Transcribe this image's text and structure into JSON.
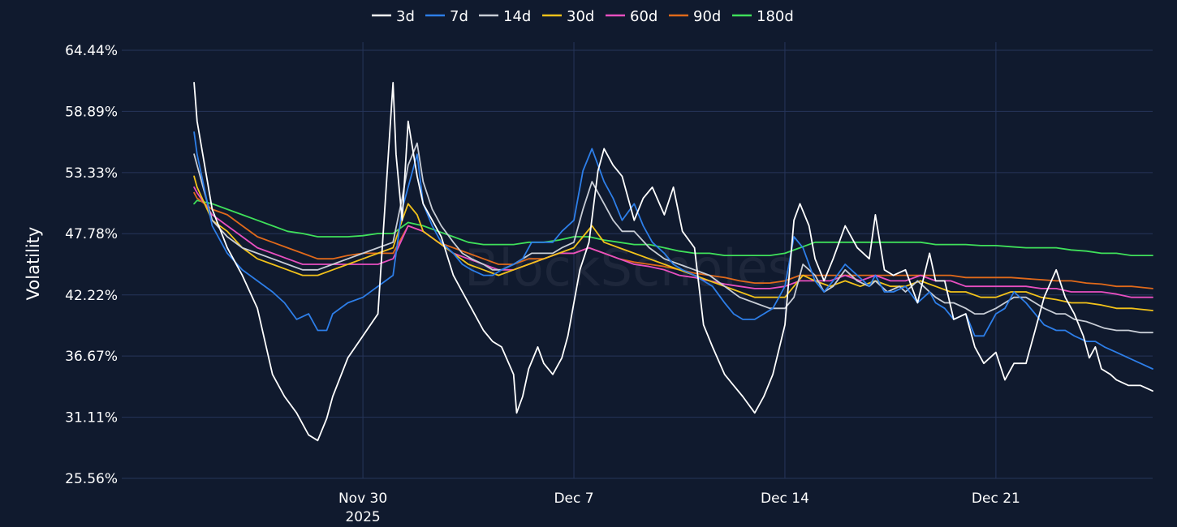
{
  "watermark": "BlockScholes",
  "chart_data": {
    "type": "line",
    "title": "",
    "xlabel": "",
    "ylabel": "Volatility",
    "ylim": [
      25.56,
      64.44
    ],
    "xlim_days_from_nov30": [
      -8,
      26.2
    ],
    "yticks": [
      "25.56%",
      "31.11%",
      "36.67%",
      "42.22%",
      "47.78%",
      "53.33%",
      "58.89%",
      "64.44%"
    ],
    "ytick_values": [
      25.56,
      31.11,
      36.67,
      42.22,
      47.78,
      53.33,
      58.89,
      64.44
    ],
    "xticks": [
      {
        "label": "Nov 30",
        "sublabel": "2025",
        "day": 0
      },
      {
        "label": "Dec 7",
        "sublabel": "",
        "day": 7
      },
      {
        "label": "Dec 14",
        "sublabel": "",
        "day": 14
      },
      {
        "label": "Dec 21",
        "sublabel": "",
        "day": 21
      }
    ],
    "legend_position": "top-center",
    "series": [
      {
        "name": "3d",
        "color": "#ffffff",
        "x": [
          -5.6,
          -5.5,
          -5.0,
          -4.5,
          -4.0,
          -3.5,
          -3.0,
          -2.6,
          -2.2,
          -1.8,
          -1.5,
          -1.2,
          -1.0,
          -0.5,
          0.0,
          0.5,
          1.0,
          1.1,
          1.3,
          1.5,
          1.8,
          2.0,
          2.3,
          2.6,
          3.0,
          3.3,
          3.6,
          4.0,
          4.3,
          4.6,
          5.0,
          5.1,
          5.3,
          5.5,
          5.8,
          6.0,
          6.3,
          6.6,
          6.8,
          7.0,
          7.2,
          7.5,
          7.8,
          8.0,
          8.3,
          8.6,
          9.0,
          9.3,
          9.6,
          10.0,
          10.3,
          10.6,
          11.0,
          11.3,
          11.6,
          12.0,
          12.3,
          12.6,
          13.0,
          13.3,
          13.6,
          14.0,
          14.3,
          14.5,
          14.8,
          15.0,
          15.3,
          15.6,
          16.0,
          16.4,
          16.8,
          17.0,
          17.3,
          17.6,
          18.0,
          18.4,
          18.8,
          19.0,
          19.3,
          19.6,
          20.0,
          20.3,
          20.6,
          21.0,
          21.3,
          21.6,
          22.0,
          22.3,
          22.6,
          23.0,
          23.3,
          23.6,
          23.9,
          24.1,
          24.3,
          24.5,
          24.8,
          25.0,
          25.4,
          25.8,
          26.2
        ],
        "y": [
          61.5,
          58.0,
          50.0,
          46.5,
          44.0,
          41.0,
          35.0,
          33.0,
          31.5,
          29.5,
          29.0,
          31.0,
          33.0,
          36.5,
          38.5,
          40.5,
          61.5,
          55.0,
          49.0,
          58.0,
          53.0,
          50.5,
          49.0,
          47.5,
          44.0,
          42.5,
          41.0,
          39.0,
          38.0,
          37.5,
          35.0,
          31.5,
          33.0,
          35.5,
          37.5,
          36.0,
          35.0,
          36.5,
          38.5,
          41.5,
          44.5,
          47.0,
          53.5,
          55.5,
          54.0,
          53.0,
          49.0,
          51.0,
          52.0,
          49.5,
          52.0,
          48.0,
          46.5,
          39.5,
          37.5,
          35.0,
          34.0,
          33.0,
          31.5,
          33.0,
          35.0,
          39.5,
          49.0,
          50.5,
          48.5,
          45.5,
          43.5,
          45.5,
          48.5,
          46.5,
          45.5,
          49.5,
          44.5,
          44.0,
          44.5,
          41.5,
          46.0,
          43.5,
          43.5,
          40.0,
          40.5,
          37.5,
          36.0,
          37.0,
          34.5,
          36.0,
          36.0,
          39.0,
          42.0,
          44.5,
          42.0,
          40.5,
          38.5,
          36.5,
          37.5,
          35.5,
          35.0,
          34.5,
          34.0,
          34.0,
          33.5
        ]
      },
      {
        "name": "7d",
        "color": "#2d7ee8",
        "x": [
          -5.6,
          -5.5,
          -5.0,
          -4.5,
          -4.0,
          -3.5,
          -3.0,
          -2.6,
          -2.2,
          -1.8,
          -1.5,
          -1.2,
          -1.0,
          -0.5,
          0.0,
          0.5,
          1.0,
          1.3,
          1.5,
          1.8,
          2.0,
          2.3,
          2.6,
          3.0,
          3.3,
          3.6,
          4.0,
          4.3,
          4.6,
          5.0,
          5.3,
          5.6,
          6.0,
          6.3,
          6.6,
          7.0,
          7.3,
          7.6,
          8.0,
          8.3,
          8.6,
          9.0,
          9.3,
          9.6,
          10.0,
          10.3,
          10.6,
          11.0,
          11.3,
          11.6,
          12.0,
          12.3,
          12.6,
          13.0,
          13.3,
          13.6,
          14.0,
          14.3,
          14.6,
          15.0,
          15.3,
          15.6,
          16.0,
          16.4,
          16.8,
          17.0,
          17.3,
          17.6,
          18.0,
          18.4,
          18.8,
          19.0,
          19.3,
          19.6,
          20.0,
          20.3,
          20.6,
          21.0,
          21.3,
          21.6,
          22.0,
          22.3,
          22.6,
          23.0,
          23.3,
          23.6,
          24.0,
          24.3,
          24.6,
          25.0,
          25.4,
          25.8,
          26.2
        ],
        "y": [
          57.0,
          55.0,
          48.5,
          46.0,
          44.5,
          43.5,
          42.5,
          41.5,
          40.0,
          40.5,
          39.0,
          39.0,
          40.5,
          41.5,
          42.0,
          43.0,
          44.0,
          50.0,
          52.0,
          55.0,
          50.5,
          48.5,
          47.0,
          46.0,
          45.0,
          44.5,
          44.0,
          44.0,
          44.5,
          45.0,
          45.5,
          47.0,
          47.0,
          47.0,
          48.0,
          49.0,
          53.5,
          55.5,
          52.5,
          51.0,
          49.0,
          50.5,
          48.5,
          47.0,
          46.0,
          45.0,
          44.5,
          44.0,
          43.5,
          43.0,
          41.5,
          40.5,
          40.0,
          40.0,
          40.5,
          41.0,
          43.0,
          47.5,
          46.5,
          43.5,
          42.5,
          43.5,
          45.0,
          44.0,
          43.0,
          44.0,
          42.5,
          42.5,
          43.0,
          41.5,
          42.5,
          41.5,
          41.0,
          40.0,
          40.5,
          38.5,
          38.5,
          40.5,
          41.0,
          42.5,
          41.5,
          40.5,
          39.5,
          39.0,
          39.0,
          38.5,
          38.0,
          38.0,
          37.5,
          37.0,
          36.5,
          36.0,
          35.5
        ]
      },
      {
        "name": "14d",
        "color": "#c8cdd6",
        "x": [
          -5.6,
          -5.5,
          -5.0,
          -4.5,
          -4.0,
          -3.5,
          -3.0,
          -2.5,
          -2.0,
          -1.5,
          -1.0,
          -0.5,
          0.0,
          0.5,
          1.0,
          1.3,
          1.5,
          1.8,
          2.0,
          2.3,
          2.6,
          3.0,
          3.3,
          3.6,
          4.0,
          4.3,
          4.6,
          5.0,
          5.3,
          5.6,
          6.0,
          6.3,
          6.6,
          7.0,
          7.3,
          7.6,
          8.0,
          8.3,
          8.6,
          9.0,
          9.5,
          10.0,
          10.5,
          11.0,
          11.5,
          12.0,
          12.5,
          13.0,
          13.5,
          14.0,
          14.3,
          14.6,
          15.0,
          15.3,
          15.6,
          16.0,
          16.4,
          16.8,
          17.0,
          17.4,
          17.8,
          18.0,
          18.4,
          18.8,
          19.0,
          19.3,
          19.6,
          20.0,
          20.3,
          20.6,
          21.0,
          21.3,
          21.6,
          22.0,
          22.3,
          22.6,
          23.0,
          23.3,
          23.6,
          24.0,
          24.3,
          24.6,
          25.0,
          25.4,
          25.8,
          26.2
        ],
        "y": [
          55.0,
          54.0,
          49.0,
          47.5,
          46.5,
          46.0,
          45.5,
          45.0,
          44.5,
          44.5,
          45.0,
          45.5,
          46.0,
          46.5,
          47.0,
          51.0,
          54.0,
          56.0,
          52.5,
          50.0,
          48.5,
          47.0,
          46.0,
          45.5,
          45.0,
          44.5,
          44.5,
          45.0,
          45.5,
          46.0,
          46.0,
          46.0,
          46.5,
          47.0,
          50.0,
          52.5,
          50.5,
          49.0,
          48.0,
          48.0,
          46.5,
          45.5,
          45.0,
          44.5,
          44.0,
          43.0,
          42.0,
          41.5,
          41.0,
          41.0,
          42.0,
          45.0,
          44.0,
          42.5,
          43.0,
          44.5,
          43.5,
          43.0,
          43.5,
          42.5,
          43.0,
          42.5,
          43.5,
          42.5,
          42.0,
          41.5,
          41.5,
          41.0,
          40.5,
          40.5,
          41.0,
          41.5,
          42.0,
          42.0,
          41.5,
          41.0,
          40.5,
          40.5,
          40.0,
          39.8,
          39.5,
          39.2,
          39.0,
          39.0,
          38.8,
          38.8
        ]
      },
      {
        "name": "30d",
        "color": "#f2c21a",
        "x": [
          -5.6,
          -5.5,
          -5.0,
          -4.5,
          -4.0,
          -3.5,
          -3.0,
          -2.5,
          -2.0,
          -1.5,
          -1.0,
          -0.5,
          0.0,
          0.5,
          1.0,
          1.3,
          1.5,
          1.8,
          2.0,
          2.5,
          3.0,
          3.5,
          4.0,
          4.5,
          5.0,
          5.5,
          6.0,
          6.5,
          7.0,
          7.3,
          7.6,
          8.0,
          8.5,
          9.0,
          9.5,
          10.0,
          10.5,
          11.0,
          11.5,
          12.0,
          12.5,
          13.0,
          13.5,
          14.0,
          14.3,
          14.6,
          15.0,
          15.5,
          16.0,
          16.5,
          17.0,
          17.5,
          18.0,
          18.5,
          19.0,
          19.5,
          20.0,
          20.5,
          21.0,
          21.5,
          22.0,
          22.5,
          23.0,
          23.5,
          24.0,
          24.5,
          25.0,
          25.5,
          26.2
        ],
        "y": [
          53.0,
          52.0,
          49.0,
          48.0,
          46.5,
          45.5,
          45.0,
          44.5,
          44.0,
          44.0,
          44.5,
          45.0,
          45.5,
          46.0,
          46.5,
          49.0,
          50.5,
          49.5,
          48.0,
          47.0,
          46.0,
          45.0,
          44.5,
          44.0,
          44.5,
          45.0,
          45.5,
          46.0,
          46.5,
          47.5,
          48.5,
          47.0,
          46.5,
          46.0,
          45.5,
          45.0,
          44.5,
          44.0,
          43.5,
          43.0,
          42.5,
          42.0,
          42.0,
          42.0,
          43.0,
          44.0,
          43.5,
          43.0,
          43.5,
          43.0,
          43.5,
          43.0,
          43.0,
          43.5,
          43.0,
          42.5,
          42.5,
          42.0,
          42.0,
          42.5,
          42.5,
          42.0,
          41.8,
          41.5,
          41.5,
          41.3,
          41.0,
          41.0,
          40.8
        ]
      },
      {
        "name": "60d",
        "color": "#e84fc0",
        "x": [
          -5.6,
          -5.5,
          -5.0,
          -4.5,
          -4.0,
          -3.5,
          -3.0,
          -2.5,
          -2.0,
          -1.5,
          -1.0,
          -0.5,
          0.0,
          0.5,
          1.0,
          1.5,
          2.0,
          2.5,
          3.0,
          3.5,
          4.0,
          4.5,
          5.0,
          5.5,
          6.0,
          6.5,
          7.0,
          7.5,
          8.0,
          8.5,
          9.0,
          9.5,
          10.0,
          10.5,
          11.0,
          11.5,
          12.0,
          12.5,
          13.0,
          13.5,
          14.0,
          14.5,
          15.0,
          15.5,
          16.0,
          16.5,
          17.0,
          17.5,
          18.0,
          18.5,
          19.0,
          19.5,
          20.0,
          20.5,
          21.0,
          21.5,
          22.0,
          22.5,
          23.0,
          23.5,
          24.0,
          24.5,
          25.0,
          25.5,
          26.2
        ],
        "y": [
          52.0,
          51.5,
          49.5,
          48.5,
          47.5,
          46.5,
          46.0,
          45.5,
          45.0,
          45.0,
          45.0,
          45.0,
          45.0,
          45.0,
          45.5,
          48.5,
          48.0,
          47.0,
          46.0,
          45.5,
          45.0,
          44.5,
          44.5,
          45.0,
          45.5,
          46.0,
          46.0,
          46.5,
          46.0,
          45.5,
          45.0,
          44.8,
          44.5,
          44.0,
          43.8,
          43.5,
          43.2,
          43.0,
          42.8,
          42.8,
          43.0,
          43.5,
          43.5,
          43.5,
          44.0,
          43.5,
          44.0,
          43.5,
          43.5,
          44.0,
          43.5,
          43.5,
          43.0,
          43.0,
          43.0,
          43.0,
          43.0,
          42.8,
          42.8,
          42.5,
          42.5,
          42.5,
          42.3,
          42.0,
          42.0
        ]
      },
      {
        "name": "90d",
        "color": "#e0691a",
        "x": [
          -5.6,
          -5.5,
          -5.0,
          -4.5,
          -4.0,
          -3.5,
          -3.0,
          -2.5,
          -2.0,
          -1.5,
          -1.0,
          -0.5,
          0.0,
          0.5,
          1.0,
          1.5,
          2.0,
          2.5,
          3.0,
          3.5,
          4.0,
          4.5,
          5.0,
          5.5,
          6.0,
          6.5,
          7.0,
          7.5,
          8.0,
          8.5,
          9.0,
          9.5,
          10.0,
          10.5,
          11.0,
          11.5,
          12.0,
          12.5,
          13.0,
          13.5,
          14.0,
          14.5,
          15.0,
          15.5,
          16.0,
          16.5,
          17.0,
          17.5,
          18.0,
          18.5,
          19.0,
          19.5,
          20.0,
          20.5,
          21.0,
          21.5,
          22.0,
          22.5,
          23.0,
          23.5,
          24.0,
          24.5,
          25.0,
          25.5,
          26.2
        ],
        "y": [
          51.5,
          51.0,
          50.0,
          49.5,
          48.5,
          47.5,
          47.0,
          46.5,
          46.0,
          45.5,
          45.5,
          45.8,
          46.0,
          46.0,
          46.0,
          48.5,
          48.0,
          47.0,
          46.5,
          46.0,
          45.5,
          45.0,
          45.0,
          45.5,
          45.5,
          46.0,
          46.0,
          46.5,
          46.0,
          45.5,
          45.2,
          45.0,
          44.8,
          44.5,
          44.2,
          44.0,
          43.8,
          43.5,
          43.3,
          43.3,
          43.5,
          44.0,
          44.0,
          44.0,
          44.0,
          44.0,
          44.0,
          44.0,
          44.0,
          44.0,
          44.0,
          44.0,
          43.8,
          43.8,
          43.8,
          43.8,
          43.7,
          43.6,
          43.5,
          43.5,
          43.3,
          43.2,
          43.0,
          43.0,
          42.8
        ]
      },
      {
        "name": "180d",
        "color": "#3fe05a",
        "x": [
          -5.6,
          -5.5,
          -5.0,
          -4.5,
          -4.0,
          -3.5,
          -3.0,
          -2.5,
          -2.0,
          -1.5,
          -1.0,
          -0.5,
          0.0,
          0.5,
          1.0,
          1.5,
          2.0,
          2.5,
          3.0,
          3.5,
          4.0,
          4.5,
          5.0,
          5.5,
          6.0,
          6.5,
          7.0,
          7.5,
          8.0,
          8.5,
          9.0,
          9.5,
          10.0,
          10.5,
          11.0,
          11.5,
          12.0,
          12.5,
          13.0,
          13.5,
          14.0,
          14.5,
          15.0,
          15.5,
          16.0,
          16.5,
          17.0,
          17.5,
          18.0,
          18.5,
          19.0,
          19.5,
          20.0,
          20.5,
          21.0,
          21.5,
          22.0,
          22.5,
          23.0,
          23.5,
          24.0,
          24.5,
          25.0,
          25.5,
          26.2
        ],
        "y": [
          50.5,
          50.8,
          50.5,
          50.0,
          49.5,
          49.0,
          48.5,
          48.0,
          47.8,
          47.5,
          47.5,
          47.5,
          47.6,
          47.8,
          47.8,
          48.8,
          48.5,
          48.0,
          47.5,
          47.0,
          46.8,
          46.8,
          46.8,
          47.0,
          47.0,
          47.2,
          47.5,
          47.5,
          47.2,
          47.0,
          46.8,
          46.8,
          46.5,
          46.2,
          46.0,
          46.0,
          45.8,
          45.8,
          45.8,
          45.8,
          46.0,
          46.5,
          47.0,
          47.0,
          47.0,
          47.0,
          47.0,
          47.0,
          47.0,
          47.0,
          46.8,
          46.8,
          46.8,
          46.7,
          46.7,
          46.6,
          46.5,
          46.5,
          46.5,
          46.3,
          46.2,
          46.0,
          46.0,
          45.8,
          45.8
        ]
      }
    ]
  }
}
